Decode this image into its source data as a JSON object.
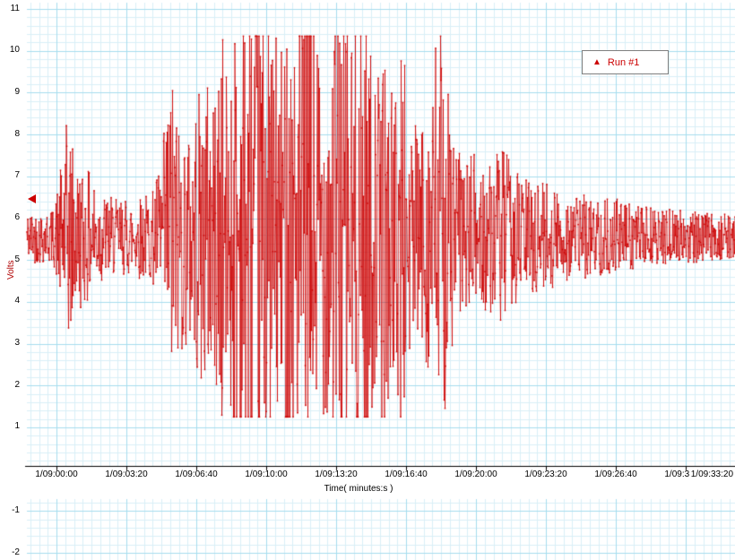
{
  "chart_data": {
    "type": "line",
    "title": "",
    "xlabel": "Time( minutes:s )",
    "ylabel": "Volts",
    "ylim": [
      -2,
      11
    ],
    "x_tick_labels": [
      "1/09:00:00",
      "1/09:03:20",
      "1/09:06:40",
      "1/09:10:00",
      "1/09:13:20",
      "1/09:16:40",
      "1/09:20:00",
      "1/09:23:20",
      "1/09:26:40",
      "1/09:30:00",
      "1/09:33:20"
    ],
    "x_tick_interval_seconds": 200,
    "y_tick_labels": [
      "11",
      "10",
      "9",
      "8",
      "7",
      "6",
      "5",
      "4",
      "3",
      "2",
      "1",
      "-1",
      "-2"
    ],
    "grid": {
      "on": true,
      "minor_color": "#d9eff7",
      "major_color": "#a6ddee"
    },
    "legend": {
      "position": "top-right",
      "marker_glyph": "▲",
      "items": [
        {
          "label": "Run #1",
          "color": "#cc0000"
        }
      ]
    },
    "cursor": {
      "y_value": 6.45,
      "color": "#cc0000"
    },
    "series": [
      {
        "name": "Run #1",
        "color": "#cc0000",
        "marker": "dot",
        "baseline": 5.55,
        "clip_low": 1.25,
        "clip_high": 10.35,
        "time_range_s": [
          -85,
          1941
        ],
        "envelope_t_s": [
          -85,
          -8,
          13,
          31,
          56,
          95,
          133,
          172,
          223,
          274,
          300,
          326,
          346,
          377,
          408,
          433,
          454,
          470,
          480,
          495,
          510,
          608,
          638,
          664,
          741,
          767,
          792,
          885,
          910,
          936,
          967,
          987,
          1013,
          1044,
          1069,
          1095,
          1121,
          1141,
          1172,
          1210,
          1236,
          1269,
          1305,
          1351,
          1403,
          1454,
          1531,
          1608,
          1685,
          1762,
          1838,
          1941
        ],
        "envelope_amp": [
          0.5,
          0.55,
          1.4,
          2.4,
          1.5,
          1.3,
          0.9,
          0.75,
          0.8,
          0.9,
          1.6,
          3.4,
          2.6,
          2.2,
          2.9,
          3.3,
          2.8,
          4.7,
          3.4,
          3.2,
          4.8,
          4.8,
          3.6,
          4.8,
          4.8,
          3.4,
          4.8,
          4.8,
          3.0,
          3.8,
          2.6,
          4.7,
          2.4,
          2.2,
          3.0,
          4.5,
          3.0,
          2.0,
          1.5,
          1.8,
          1.4,
          1.9,
          1.4,
          1.2,
          1.1,
          0.95,
          0.8,
          0.75,
          0.6,
          0.55,
          0.5,
          0.45
        ]
      }
    ]
  }
}
